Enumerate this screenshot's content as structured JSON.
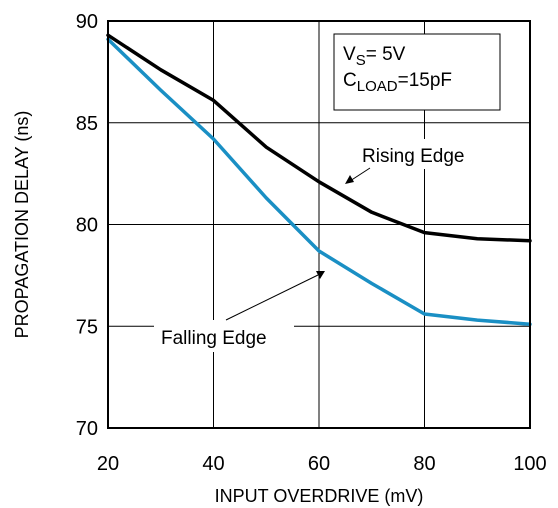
{
  "chart_data": {
    "type": "line",
    "xlabel": "INPUT OVERDRIVE (mV)",
    "ylabel": "PROPAGATION DELAY (ns)",
    "xlim": [
      20,
      100
    ],
    "ylim": [
      70,
      90
    ],
    "xticks": [
      20,
      40,
      60,
      80,
      100
    ],
    "yticks": [
      70,
      75,
      80,
      85,
      90
    ],
    "grid": true,
    "series": [
      {
        "name": "Rising Edge",
        "color": "#000000",
        "x": [
          20,
          30,
          40,
          50,
          60,
          70,
          80,
          90,
          100
        ],
        "y": [
          89.3,
          87.6,
          86.1,
          83.8,
          82.1,
          80.6,
          79.6,
          79.3,
          79.2
        ]
      },
      {
        "name": "Falling Edge",
        "color": "#1a8fc4",
        "x": [
          20,
          30,
          40,
          50,
          60,
          70,
          80,
          90,
          100
        ],
        "y": [
          89.1,
          86.6,
          84.2,
          81.3,
          78.7,
          77.1,
          75.6,
          75.3,
          75.1
        ]
      }
    ],
    "conditions": {
      "line1_main": "V",
      "line1_sub": "S",
      "line1_rest": "= 5V",
      "line2_main": "C",
      "line2_sub": "LOAD",
      "line2_rest": "=15pF"
    }
  }
}
